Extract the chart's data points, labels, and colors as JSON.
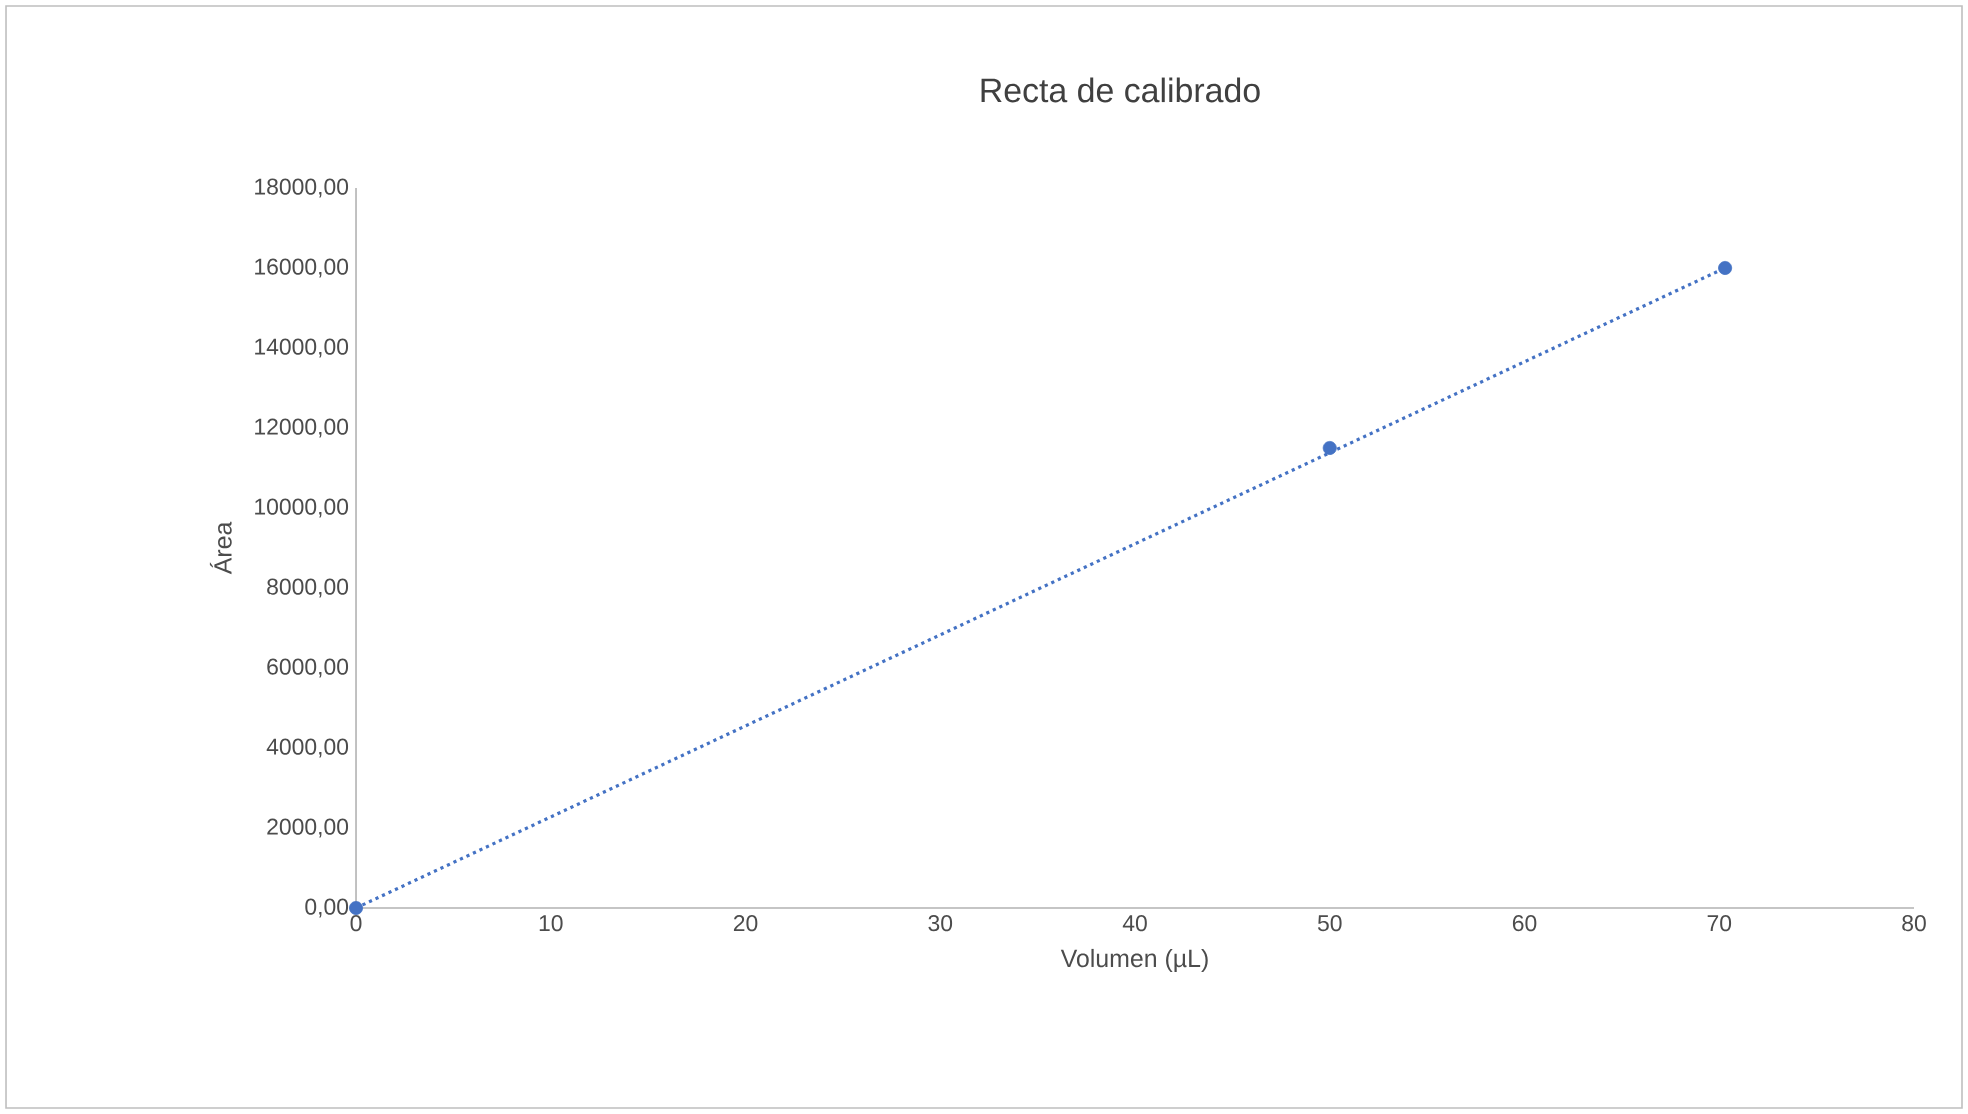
{
  "chart_data": {
    "type": "scatter",
    "title": "Recta de calibrado",
    "xlabel": "Volumen (µL)",
    "ylabel": "Área",
    "series": [
      {
        "x": [
          0,
          50,
          70.3
        ],
        "values": [
          0,
          11500,
          16000
        ],
        "color": "#4472c4",
        "marker": "circle"
      },
      {
        "type": "line",
        "x": [
          0,
          70.3
        ],
        "values": [
          0,
          16000
        ],
        "color": "#4472c4",
        "line_style": "dotted"
      }
    ],
    "xlim": [
      0,
      80
    ],
    "xticks": [
      0,
      10,
      20,
      30,
      40,
      50,
      60,
      70,
      80
    ],
    "ylim": [
      0,
      18000
    ],
    "yticks": [
      {
        "value": 0,
        "label": "0,00"
      },
      {
        "value": 2000,
        "label": "2000,00"
      },
      {
        "value": 4000,
        "label": "4000,00"
      },
      {
        "value": 6000,
        "label": "6000,00"
      },
      {
        "value": 8000,
        "label": "8000,00"
      },
      {
        "value": 10000,
        "label": "10000,00"
      },
      {
        "value": 12000,
        "label": "12000,00"
      },
      {
        "value": 14000,
        "label": "14000,00"
      },
      {
        "value": 16000,
        "label": "16000,00"
      },
      {
        "value": 18000,
        "label": "18000,00"
      }
    ],
    "grid": false
  }
}
